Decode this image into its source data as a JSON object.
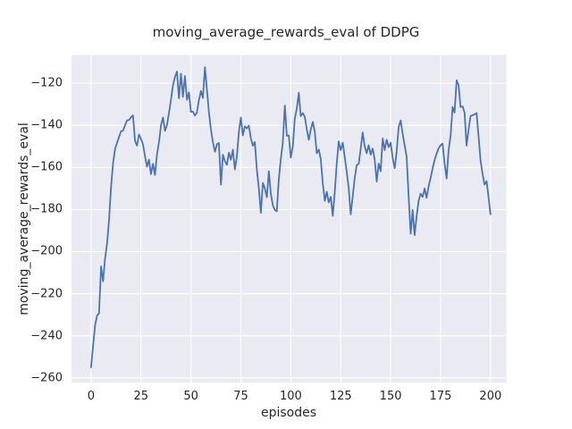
{
  "chart": {
    "title": "moving_average_rewards_eval of DDPG",
    "xlabel": "episodes",
    "ylabel": "moving_average_rewards_eval"
  },
  "chart_data": {
    "type": "line",
    "title": "moving_average_rewards_eval of DDPG",
    "xlabel": "episodes",
    "ylabel": "moving_average_rewards_eval",
    "grid": true,
    "legend": "none",
    "xticks": [
      0,
      25,
      50,
      75,
      100,
      125,
      150,
      175,
      200
    ],
    "yticks": [
      -120,
      -140,
      -160,
      -180,
      -200,
      -220,
      -240,
      -260
    ],
    "xlim": [
      -9.8,
      207.9
    ],
    "ylim": [
      -262.2,
      -106.6
    ],
    "style": {
      "line_color": "#4c72b0",
      "plot_bg": "#eaeaf2",
      "grid_color": "#ffffff",
      "text_color": "#262626",
      "line_width": 1.8
    },
    "series": [
      {
        "name": "moving_average_rewards_eval",
        "x_start": 0,
        "x_step": 1,
        "values": [
          -255,
          -245,
          -235,
          -230.4,
          -229.3,
          -207,
          -214.1,
          -203.5,
          -196,
          -185,
          -169.6,
          -158,
          -151.2,
          -148.3,
          -145.5,
          -142.8,
          -142.5,
          -140,
          -137.7,
          -137.5,
          -136.2,
          -135.3,
          -147.5,
          -149.7,
          -144.4,
          -146.5,
          -149,
          -154.7,
          -159.7,
          -156.3,
          -163.2,
          -158.3,
          -163.6,
          -154,
          -148,
          -140,
          -136.3,
          -142.7,
          -139.9,
          -134,
          -128,
          -121,
          -117,
          -114.5,
          -127.2,
          -115.5,
          -126.5,
          -116.6,
          -127.9,
          -124.4,
          -133.6,
          -133.5,
          -135.4,
          -134,
          -128,
          -123.7,
          -127,
          -112.4,
          -123,
          -133.6,
          -142,
          -148,
          -152.6,
          -149,
          -148.4,
          -168.2,
          -154,
          -157,
          -158.8,
          -153,
          -156.4,
          -151.6,
          -161,
          -155,
          -143,
          -136.3,
          -144.8,
          -140.5,
          -141.5,
          -140.2,
          -146.2,
          -149.7,
          -148,
          -161,
          -170,
          -181.6,
          -167.4,
          -170,
          -174.2,
          -161.8,
          -172.4,
          -178,
          -180.2,
          -180.9,
          -165.3,
          -156,
          -148.3,
          -130.6,
          -145,
          -144.8,
          -155.4,
          -150,
          -137,
          -132,
          -124.5,
          -135.6,
          -134.2,
          -136,
          -142,
          -146.9,
          -142,
          -138.4,
          -143,
          -153.3,
          -151.5,
          -156.1,
          -167.4,
          -175.9,
          -171.6,
          -176.6,
          -174,
          -183,
          -172,
          -158,
          -147.6,
          -151.8,
          -148.3,
          -155,
          -162,
          -170,
          -182.3,
          -174,
          -165,
          -159,
          -158.2,
          -151,
          -143.4,
          -150,
          -153.3,
          -149.5,
          -154,
          -151.1,
          -156.1,
          -166.7,
          -158.2,
          -161.8,
          -146.2,
          -151.8,
          -146.9,
          -150.4,
          -148.3,
          -155.4,
          -160.4,
          -152.6,
          -141,
          -137.7,
          -144,
          -149.7,
          -155,
          -173.8,
          -191.5,
          -180.2,
          -192.2,
          -183,
          -176,
          -172.5,
          -174,
          -170,
          -174.5,
          -169,
          -165,
          -160.5,
          -156.5,
          -153.5,
          -151,
          -149.5,
          -148.7,
          -158,
          -165.3,
          -152,
          -144.8,
          -131.3,
          -134,
          -118.6,
          -121,
          -131.3,
          -131,
          -134,
          -149.7,
          -142,
          -135.6,
          -135.2,
          -134.8,
          -134.2,
          -145,
          -156.8,
          -163,
          -168.2,
          -166.5,
          -174,
          -182.3
        ]
      }
    ]
  }
}
